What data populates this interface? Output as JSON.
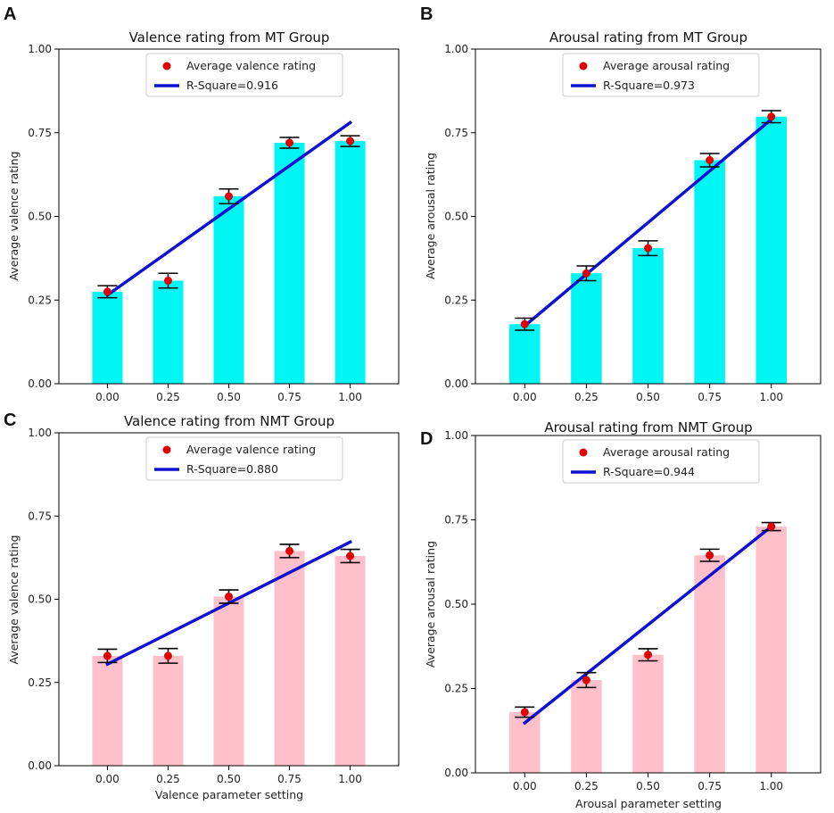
{
  "colors": {
    "bar_mt": "#00f5f5",
    "bar_nmt": "#ffc0cb",
    "fit_line": "#1010d0",
    "point": "#e00000",
    "errorbar": "#000000"
  },
  "chart_data": [
    {
      "panel": "A",
      "type": "bar",
      "title": "Valence rating from MT Group",
      "xlabel": "",
      "ylabel": "Average valence rating",
      "categories": [
        "0.00",
        "0.25",
        "0.50",
        "0.75",
        "1.00"
      ],
      "yticks": [
        "0.00",
        "0.25",
        "0.50",
        "0.75",
        "1.00"
      ],
      "ylim": [
        0,
        1
      ],
      "bar_color": "bar_mt",
      "bars": [
        0.275,
        0.308,
        0.56,
        0.72,
        0.725
      ],
      "points": [
        0.275,
        0.308,
        0.56,
        0.72,
        0.725
      ],
      "errors": [
        0.018,
        0.022,
        0.022,
        0.016,
        0.016
      ],
      "fit": [
        0.265,
        0.78
      ],
      "legend": {
        "point_label": "Average valence rating",
        "line_label": "R-Square=0.916"
      }
    },
    {
      "panel": "B",
      "type": "bar",
      "title": "Arousal rating from MT Group",
      "xlabel": "",
      "ylabel": "Average arousal rating",
      "categories": [
        "0.00",
        "0.25",
        "0.50",
        "0.75",
        "1.00"
      ],
      "yticks": [
        "0.00",
        "0.25",
        "0.50",
        "0.75",
        "1.00"
      ],
      "ylim": [
        0,
        1
      ],
      "bar_color": "bar_mt",
      "bars": [
        0.178,
        0.33,
        0.405,
        0.668,
        0.798
      ],
      "points": [
        0.178,
        0.33,
        0.405,
        0.668,
        0.798
      ],
      "errors": [
        0.018,
        0.022,
        0.022,
        0.02,
        0.018
      ],
      "fit": [
        0.173,
        0.79
      ],
      "legend": {
        "point_label": "Average arousal rating",
        "line_label": "R-Square=0.973"
      }
    },
    {
      "panel": "C",
      "type": "bar",
      "title": "Valence rating from NMT Group",
      "xlabel": "Valence parameter setting",
      "ylabel": "Average valence rating",
      "categories": [
        "0.00",
        "0.25",
        "0.50",
        "0.75",
        "1.00"
      ],
      "yticks": [
        "0.00",
        "0.25",
        "0.50",
        "0.75",
        "1.00"
      ],
      "ylim": [
        0,
        1
      ],
      "bar_color": "bar_nmt",
      "bars": [
        0.33,
        0.33,
        0.508,
        0.645,
        0.63
      ],
      "points": [
        0.33,
        0.33,
        0.508,
        0.645,
        0.63
      ],
      "errors": [
        0.02,
        0.022,
        0.02,
        0.02,
        0.02
      ],
      "fit": [
        0.305,
        0.672
      ],
      "legend": {
        "point_label": "Average valence rating",
        "line_label": "R-Square=0.880"
      }
    },
    {
      "panel": "D",
      "type": "bar",
      "title": "Arousal rating from NMT Group",
      "xlabel": "Arousal parameter setting",
      "ylabel": "Average arousal rating",
      "categories": [
        "0.00",
        "0.25",
        "0.50",
        "0.75",
        "1.00"
      ],
      "yticks": [
        "0.00",
        "0.25",
        "0.50",
        "0.75",
        "1.00"
      ],
      "ylim": [
        0,
        1
      ],
      "bar_color": "bar_nmt",
      "bars": [
        0.18,
        0.275,
        0.35,
        0.645,
        0.73
      ],
      "points": [
        0.18,
        0.275,
        0.35,
        0.645,
        0.73
      ],
      "errors": [
        0.015,
        0.022,
        0.018,
        0.018,
        0.012
      ],
      "fit": [
        0.148,
        0.73
      ],
      "legend": {
        "point_label": "Average arousal rating",
        "line_label": "R-Square=0.944"
      }
    }
  ]
}
